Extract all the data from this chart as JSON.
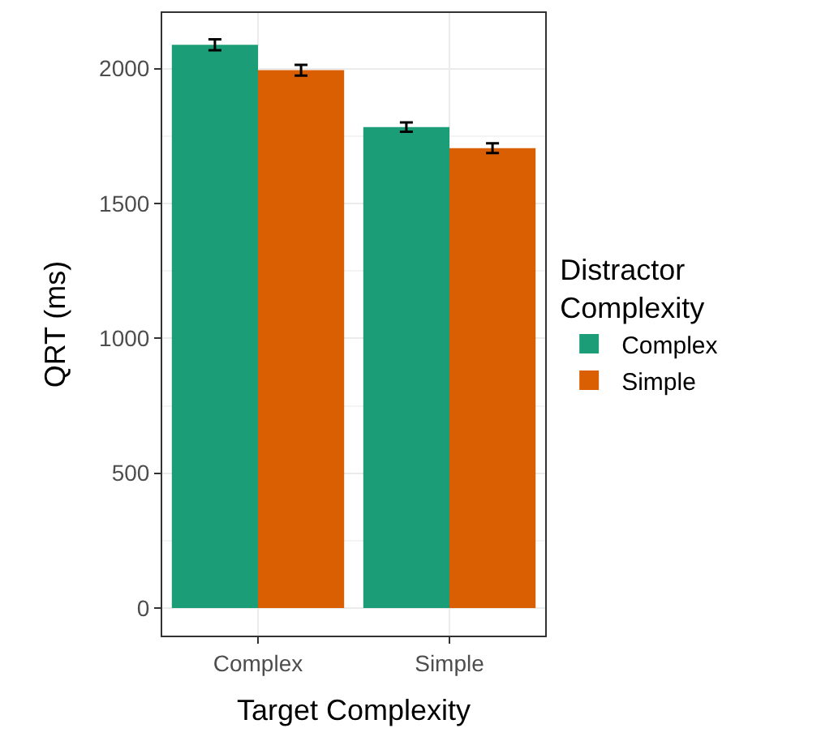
{
  "chart_data": {
    "type": "bar",
    "xlabel": "Target Complexity",
    "ylabel": "QRT (ms)",
    "legend_title": "Distractor\nComplexity",
    "categories": [
      "Complex",
      "Simple"
    ],
    "series": [
      {
        "name": "Complex",
        "color": "#1b9e77",
        "values": [
          2088,
          1783
        ],
        "errors": [
          20,
          17
        ]
      },
      {
        "name": "Simple",
        "color": "#d95f02",
        "values": [
          1994,
          1705
        ],
        "errors": [
          20,
          18
        ]
      }
    ],
    "ylim": [
      -102,
      2206
    ],
    "yticks": [
      0,
      500,
      1000,
      1500,
      2000
    ],
    "grid": true,
    "legend": "right"
  }
}
